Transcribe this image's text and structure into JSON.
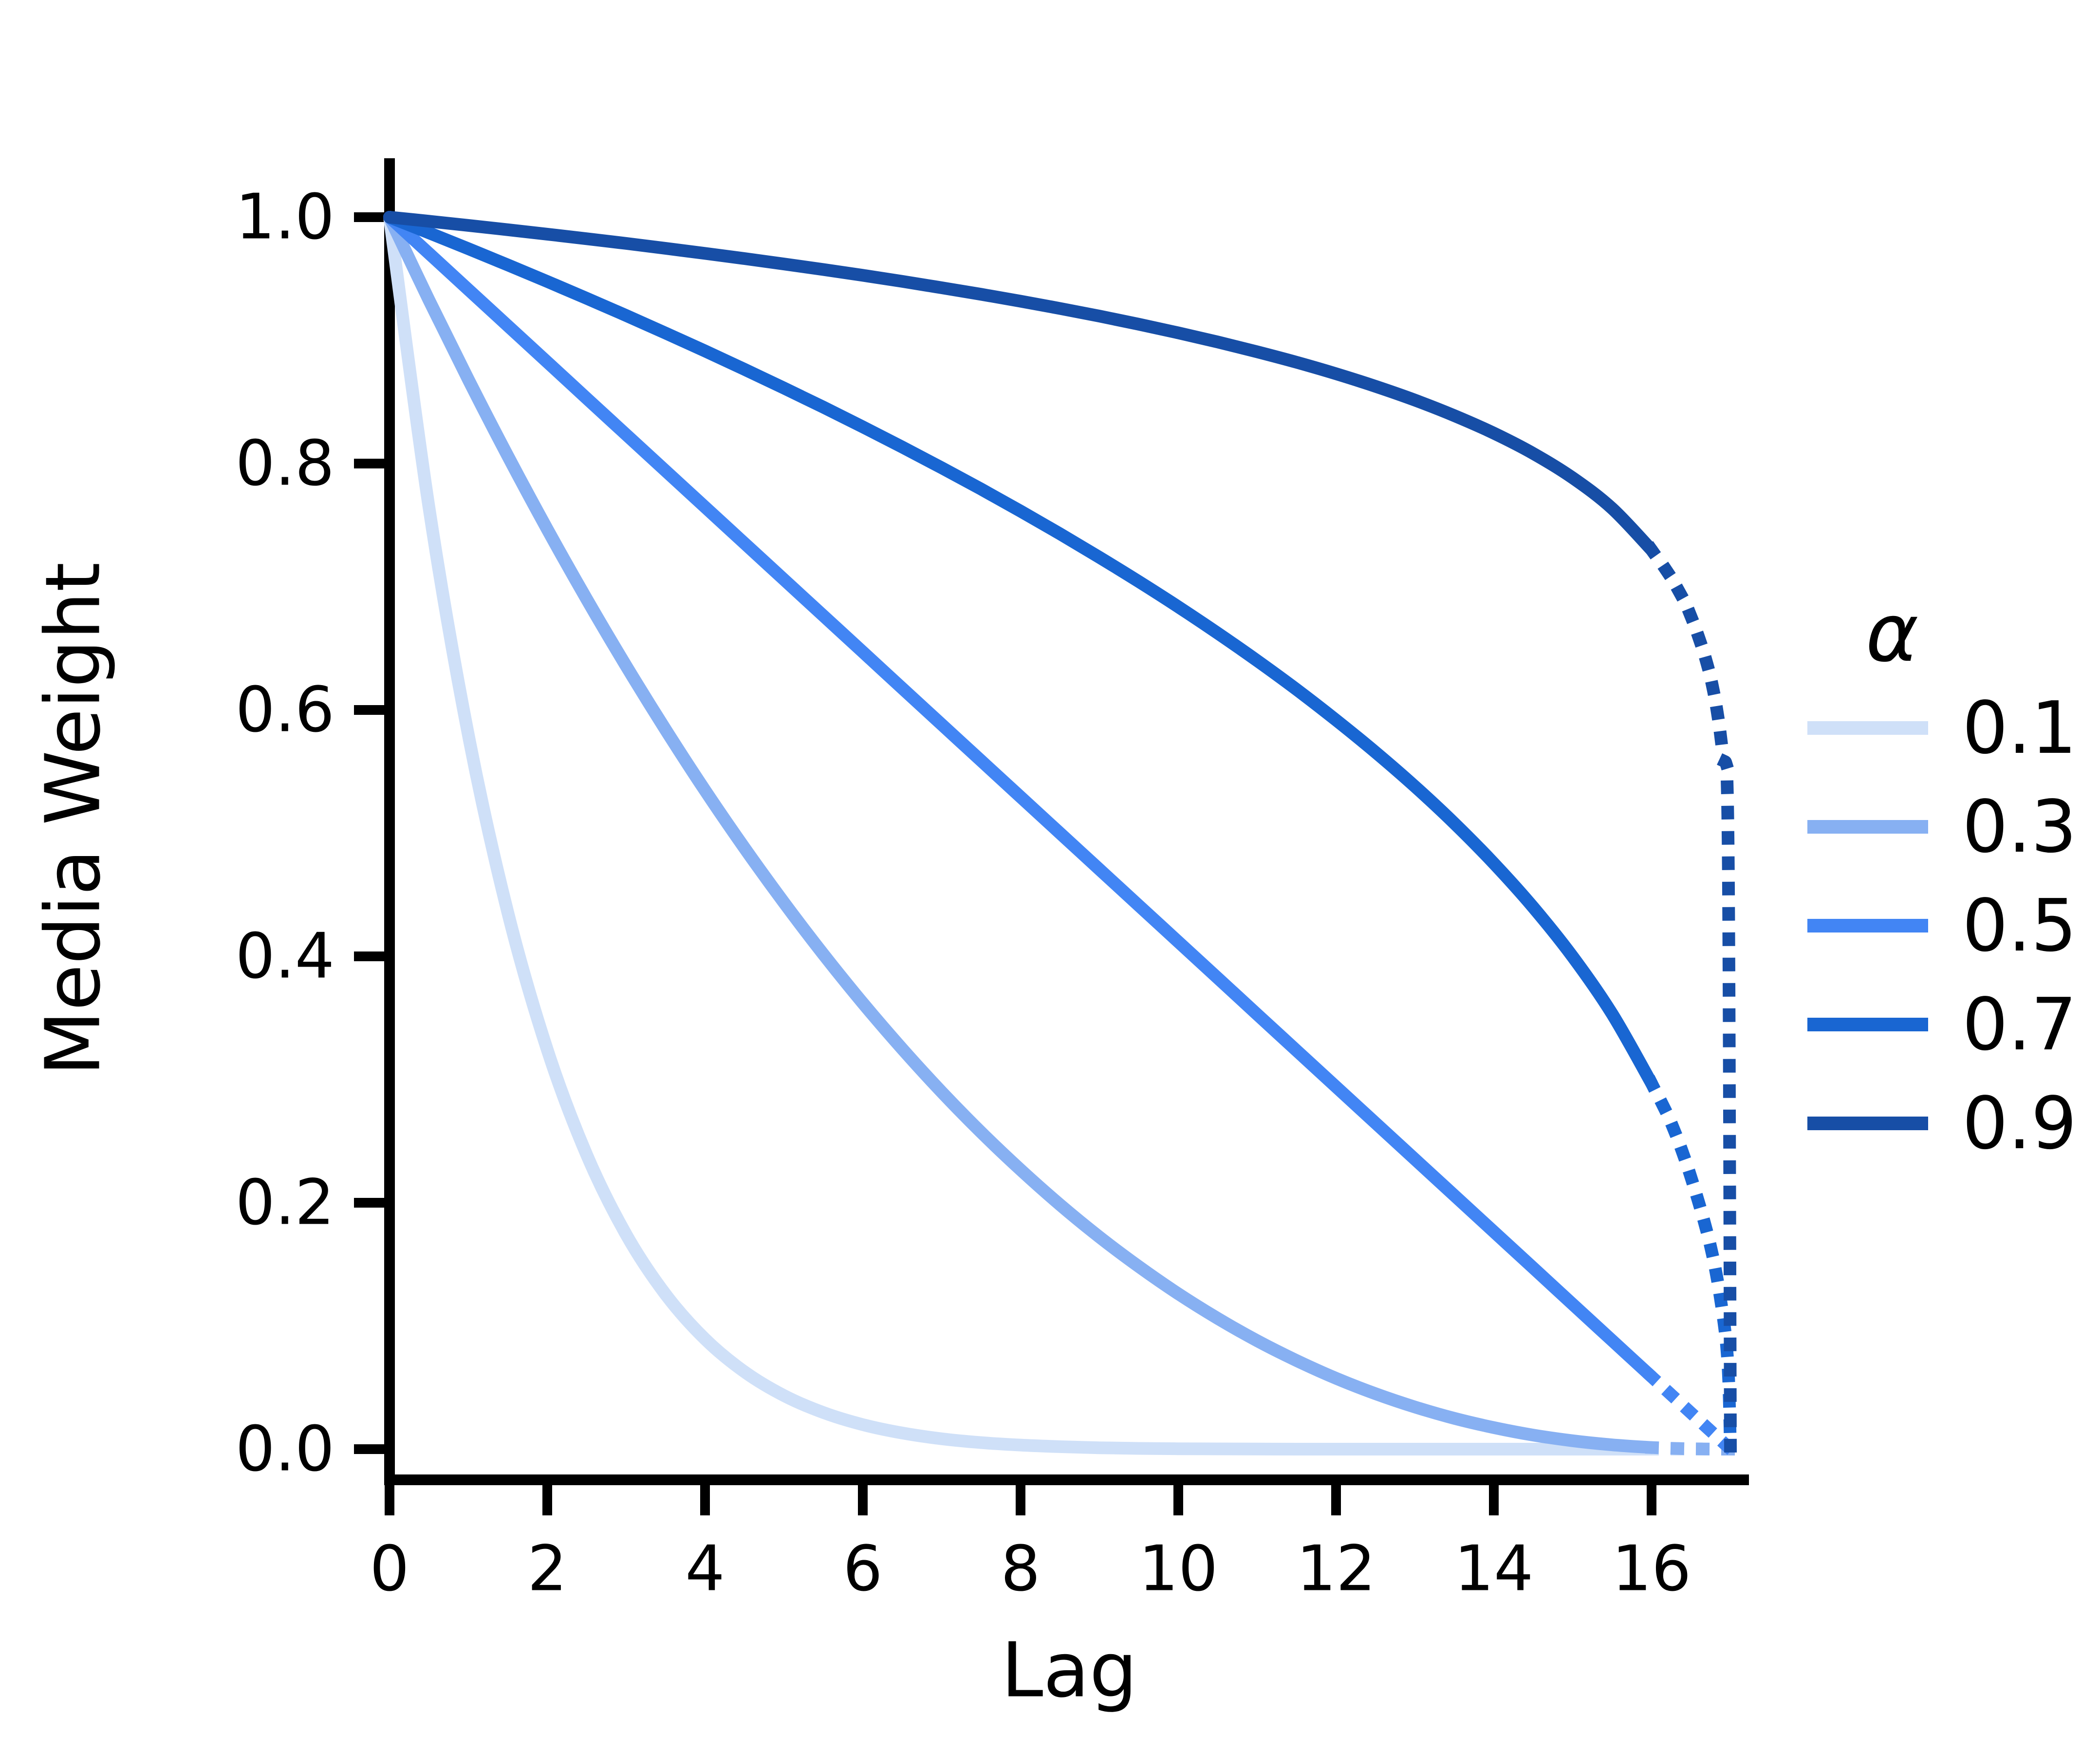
{
  "chart_data": {
    "type": "line",
    "title": "",
    "xlabel": "Lag",
    "ylabel": "Media Weight",
    "xlim": [
      0,
      17.2
    ],
    "ylim": [
      -0.025,
      1.05
    ],
    "grid": false,
    "x_ticks": [
      "0",
      "2",
      "4",
      "6",
      "8",
      "10",
      "12",
      "14",
      "16"
    ],
    "y_ticks": [
      "0.0",
      "0.2",
      "0.4",
      "0.6",
      "0.8",
      "1.0"
    ],
    "legend": {
      "title": "α",
      "position": "right",
      "entries": [
        "0.1",
        "0.3",
        "0.5",
        "0.7",
        "0.9"
      ]
    },
    "line_style_note": "solid for lag 0-16, dotted for lag 16-17",
    "series": [
      {
        "label": "0.1",
        "alpha": 0.1,
        "color": "#cfe0f8",
        "solid": {
          "lag": [
            0,
            0.5,
            1,
            1.5,
            2,
            2.5,
            3,
            3.5,
            4,
            4.5,
            5,
            5.5,
            6,
            6.5,
            7,
            7.5,
            8,
            8.5,
            9,
            9.5,
            10,
            10.5,
            11,
            11.5,
            12,
            12.5,
            13,
            13.5,
            14,
            14.5,
            15,
            15.5,
            16
          ],
          "weight": [
            1,
            0.7645,
            0.5795,
            0.4355,
            0.3242,
            0.2389,
            0.1742,
            0.1256,
            0.0894,
            0.0628,
            0.0435,
            0.0297,
            0.0199,
            0.0131,
            0.0084,
            0.0053,
            0.0033,
            0.002,
            0.0011,
            0.0006,
            0.0003,
            0.0002,
            0.0001,
            0,
            0,
            0,
            0,
            0,
            0,
            0,
            0,
            0,
            0
          ]
        },
        "dashed": {
          "lag": [
            16,
            16.25,
            16.5,
            16.75,
            16.9,
            16.97,
            17
          ],
          "weight": [
            0,
            0,
            0,
            0,
            0,
            0,
            0
          ]
        }
      },
      {
        "label": "0.3",
        "alpha": 0.3,
        "color": "#87b0f2",
        "solid": {
          "lag": [
            0,
            0.5,
            1,
            1.5,
            2,
            2.5,
            3,
            3.5,
            4,
            4.5,
            5,
            5.5,
            6,
            6.5,
            7,
            7.5,
            8,
            8.5,
            9,
            9.5,
            10,
            10.5,
            11,
            11.5,
            12,
            12.5,
            13,
            13.5,
            14,
            14.5,
            15,
            15.5,
            16
          ],
          "weight": [
            1,
            0.9327,
            0.8681,
            0.8061,
            0.7467,
            0.6899,
            0.6357,
            0.584,
            0.5347,
            0.488,
            0.4437,
            0.4017,
            0.3621,
            0.3249,
            0.2899,
            0.2572,
            0.2268,
            0.1984,
            0.1722,
            0.1482,
            0.1261,
            0.1061,
            0.088,
            0.0719,
            0.0575,
            0.045,
            0.0342,
            0.025,
            0.0175,
            0.0114,
            0.0068,
            0.0035,
            0.0013
          ]
        },
        "dashed": {
          "lag": [
            16,
            16.25,
            16.5,
            16.75,
            16.9,
            16.97,
            17
          ],
          "weight": [
            0.0013,
            0.0007,
            0.0003,
            0.0001,
            0,
            0,
            0
          ]
        }
      },
      {
        "label": "0.5",
        "alpha": 0.5,
        "color": "#4285f4",
        "solid": {
          "lag": [
            0,
            0.5,
            1,
            1.5,
            2,
            2.5,
            3,
            3.5,
            4,
            4.5,
            5,
            5.5,
            6,
            6.5,
            7,
            7.5,
            8,
            8.5,
            9,
            9.5,
            10,
            10.5,
            11,
            11.5,
            12,
            12.5,
            13,
            13.5,
            14,
            14.5,
            15,
            15.5,
            16
          ],
          "weight": [
            1,
            0.9706,
            0.9412,
            0.9118,
            0.8824,
            0.8529,
            0.8235,
            0.7941,
            0.7647,
            0.7353,
            0.7059,
            0.6765,
            0.6471,
            0.6176,
            0.5882,
            0.5588,
            0.5294,
            0.5,
            0.4706,
            0.4412,
            0.4118,
            0.3824,
            0.3529,
            0.3235,
            0.2941,
            0.2647,
            0.2353,
            0.2059,
            0.1765,
            0.1471,
            0.1176,
            0.0882,
            0.0588
          ]
        },
        "dashed": {
          "lag": [
            16,
            16.25,
            16.5,
            16.75,
            16.9,
            16.97,
            17
          ],
          "weight": [
            0.0588,
            0.0441,
            0.0294,
            0.0147,
            0.0059,
            0.0018,
            0
          ]
        }
      },
      {
        "label": "0.7",
        "alpha": 0.7,
        "color": "#1966d2",
        "solid": {
          "lag": [
            0,
            0.5,
            1,
            1.5,
            2,
            2.5,
            3,
            3.5,
            4,
            4.5,
            5,
            5.5,
            6,
            6.5,
            7,
            7.5,
            8,
            8.5,
            9,
            9.5,
            10,
            10.5,
            11,
            11.5,
            12,
            12.5,
            13,
            13.5,
            14,
            14.5,
            15,
            15.5,
            16
          ],
          "weight": [
            1,
            0.9873,
            0.9744,
            0.9612,
            0.9478,
            0.9341,
            0.9202,
            0.9059,
            0.8914,
            0.8765,
            0.8613,
            0.8458,
            0.8298,
            0.8134,
            0.7966,
            0.7793,
            0.7614,
            0.743,
            0.7239,
            0.7042,
            0.6837,
            0.6623,
            0.64,
            0.6166,
            0.5918,
            0.5657,
            0.5379,
            0.508,
            0.4755,
            0.4398,
            0.3997,
            0.3533,
            0.2969
          ]
        },
        "dashed": {
          "lag": [
            16,
            16.25,
            16.5,
            16.75,
            16.9,
            16.97,
            17
          ],
          "weight": [
            0.2969,
            0.2645,
            0.2206,
            0.1639,
            0.1107,
            0.0661,
            0
          ]
        }
      },
      {
        "label": "0.9",
        "alpha": 0.9,
        "color": "#174ea6",
        "solid": {
          "lag": [
            0,
            0.5,
            1,
            1.5,
            2,
            2.5,
            3,
            3.5,
            4,
            4.5,
            5,
            5.5,
            6,
            6.5,
            7,
            7.5,
            8,
            8.5,
            9,
            9.5,
            10,
            10.5,
            11,
            11.5,
            12,
            12.5,
            13,
            13.5,
            14,
            14.5,
            15,
            15.5,
            16
          ],
          "weight": [
            1,
            0.9967,
            0.9933,
            0.9898,
            0.9862,
            0.9825,
            0.9787,
            0.9747,
            0.9706,
            0.9664,
            0.962,
            0.9575,
            0.9528,
            0.9479,
            0.9427,
            0.9374,
            0.9318,
            0.9259,
            0.9197,
            0.9131,
            0.9061,
            0.8987,
            0.8907,
            0.8822,
            0.8729,
            0.8627,
            0.8515,
            0.8389,
            0.8247,
            0.8082,
            0.7884,
            0.7636,
            0.7299
          ]
        },
        "dashed": {
          "lag": [
            16,
            16.25,
            16.5,
            16.75,
            16.9,
            16.97,
            17
          ],
          "weight": [
            0.7299,
            0.707,
            0.6758,
            0.6257,
            0.5652,
            0.4944,
            0
          ]
        }
      }
    ]
  },
  "colors": {
    "axis": "#000000",
    "background": "#ffffff"
  }
}
